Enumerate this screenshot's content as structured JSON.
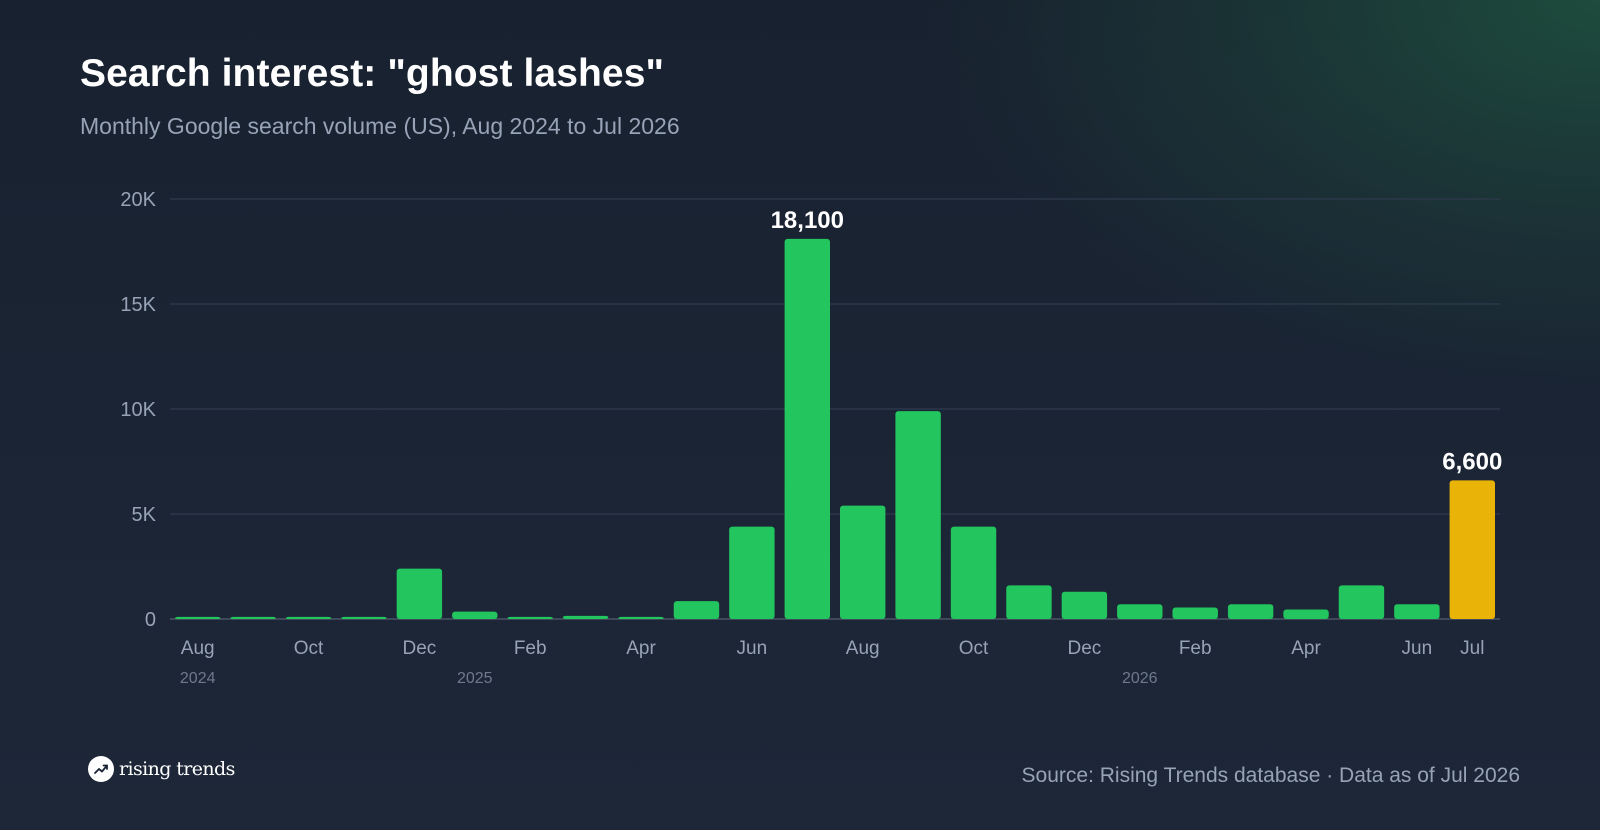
{
  "header": {
    "title": "Search interest: \"ghost lashes\"",
    "subtitle": "Monthly Google search volume (US), Aug 2024 to Jul 2026"
  },
  "footer": {
    "brand": "rising trends",
    "brand_icon": "trending-up-icon",
    "source": "Source: Rising Trends database · Data as of Jul 2026"
  },
  "colors": {
    "bar": "#22c55e",
    "highlight_bar": "#eab308",
    "background": "#1b2535"
  },
  "chart_data": {
    "type": "bar",
    "title": "Search interest: \"ghost lashes\"",
    "subtitle": "Monthly Google search volume (US), Aug 2024 to Jul 2026",
    "categories": [
      "Aug 2024",
      "Sep 2024",
      "Oct 2024",
      "Nov 2024",
      "Dec 2024",
      "Jan 2025",
      "Feb 2025",
      "Mar 2025",
      "Apr 2025",
      "May 2025",
      "Jun 2025",
      "Jul 2025",
      "Aug 2025",
      "Sep 2025",
      "Oct 2025",
      "Nov 2025",
      "Dec 2025",
      "Jan 2026",
      "Feb 2026",
      "Mar 2026",
      "Apr 2026",
      "May 2026",
      "Jun 2026",
      "Jul 2026"
    ],
    "values": [
      100,
      100,
      100,
      100,
      2400,
      350,
      100,
      150,
      100,
      850,
      4400,
      18100,
      5400,
      9900,
      4400,
      1600,
      1300,
      700,
      550,
      700,
      450,
      1600,
      700,
      6600
    ],
    "highlight_index": 23,
    "ylim": [
      0,
      20000
    ],
    "yticks": [
      {
        "value": 0,
        "label": "0"
      },
      {
        "value": 5000,
        "label": "5K"
      },
      {
        "value": 10000,
        "label": "10K"
      },
      {
        "value": 15000,
        "label": "15K"
      },
      {
        "value": 20000,
        "label": "20K"
      }
    ],
    "xtick_labels": [
      {
        "index": 0,
        "label": "Aug"
      },
      {
        "index": 2,
        "label": "Oct"
      },
      {
        "index": 4,
        "label": "Dec"
      },
      {
        "index": 6,
        "label": "Feb"
      },
      {
        "index": 8,
        "label": "Apr"
      },
      {
        "index": 10,
        "label": "Jun"
      },
      {
        "index": 12,
        "label": "Aug"
      },
      {
        "index": 14,
        "label": "Oct"
      },
      {
        "index": 16,
        "label": "Dec"
      },
      {
        "index": 18,
        "label": "Feb"
      },
      {
        "index": 20,
        "label": "Apr"
      },
      {
        "index": 22,
        "label": "Jun"
      },
      {
        "index": 23,
        "label": "Jul"
      }
    ],
    "year_labels": [
      {
        "index": 0,
        "label": "2024"
      },
      {
        "index": 5,
        "label": "2025"
      },
      {
        "index": 17,
        "label": "2026"
      }
    ],
    "data_labels": [
      {
        "index": 11,
        "label": "18,100"
      },
      {
        "index": 23,
        "label": "6,600"
      }
    ],
    "grid": true,
    "legend": "none"
  }
}
